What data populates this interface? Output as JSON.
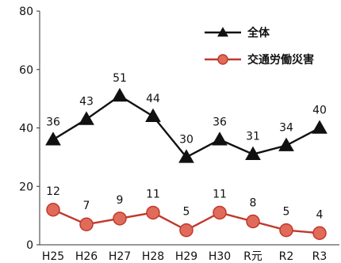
{
  "chart_data": {
    "type": "line",
    "title": "",
    "xlabel": "",
    "ylabel": "",
    "categories": [
      "H25",
      "H26",
      "H27",
      "H28",
      "H29",
      "H30",
      "R元",
      "R2",
      "R3"
    ],
    "ylim": [
      0,
      80
    ],
    "yticks": [
      0,
      20,
      40,
      60,
      80
    ],
    "grid": false,
    "legend_position": "top-right",
    "series": [
      {
        "name": "全体",
        "values": [
          36,
          43,
          51,
          44,
          30,
          36,
          31,
          34,
          40
        ],
        "color": "#111111",
        "marker": "triangle"
      },
      {
        "name": "交通労働災害",
        "values": [
          12,
          7,
          9,
          11,
          5,
          11,
          8,
          5,
          4
        ],
        "color": "#c0392b",
        "marker_fill": "#e06b5a",
        "marker": "circle"
      }
    ]
  }
}
